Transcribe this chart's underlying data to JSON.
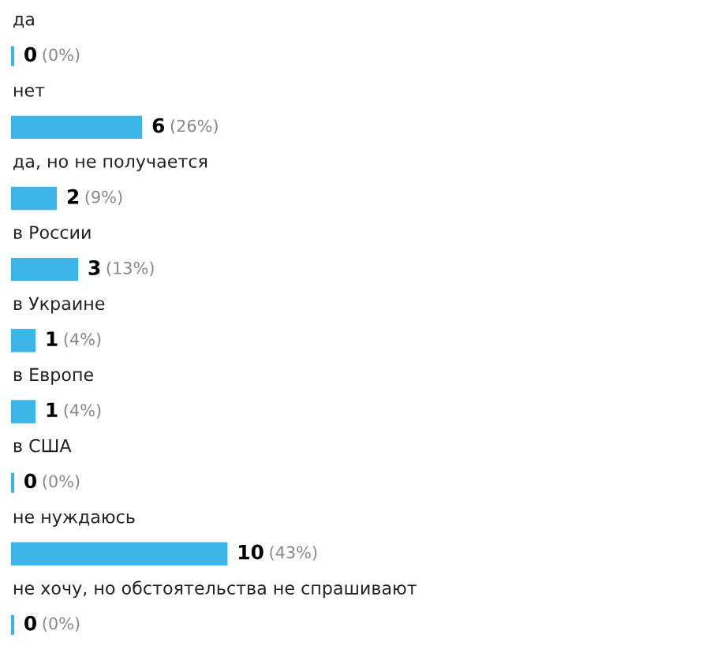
{
  "chart_data": {
    "type": "bar",
    "orientation": "horizontal",
    "categories": [
      "да",
      "нет",
      "да, но не получается",
      "в России",
      "в Украине",
      "в Европе",
      "в США",
      "не нуждаюсь",
      "не хочу, но обстоятельства не спрашивают"
    ],
    "values": [
      0,
      6,
      2,
      3,
      1,
      1,
      0,
      10,
      0
    ],
    "value_labels": [
      "0 (0%)",
      "6 (26%)",
      "2 (9%)",
      "3 (13%)",
      "1 (4%)",
      "1 (4%)",
      "0 (0%)",
      "10 (43%)",
      "0 (0%)"
    ],
    "color": "#3db5e6"
  }
}
